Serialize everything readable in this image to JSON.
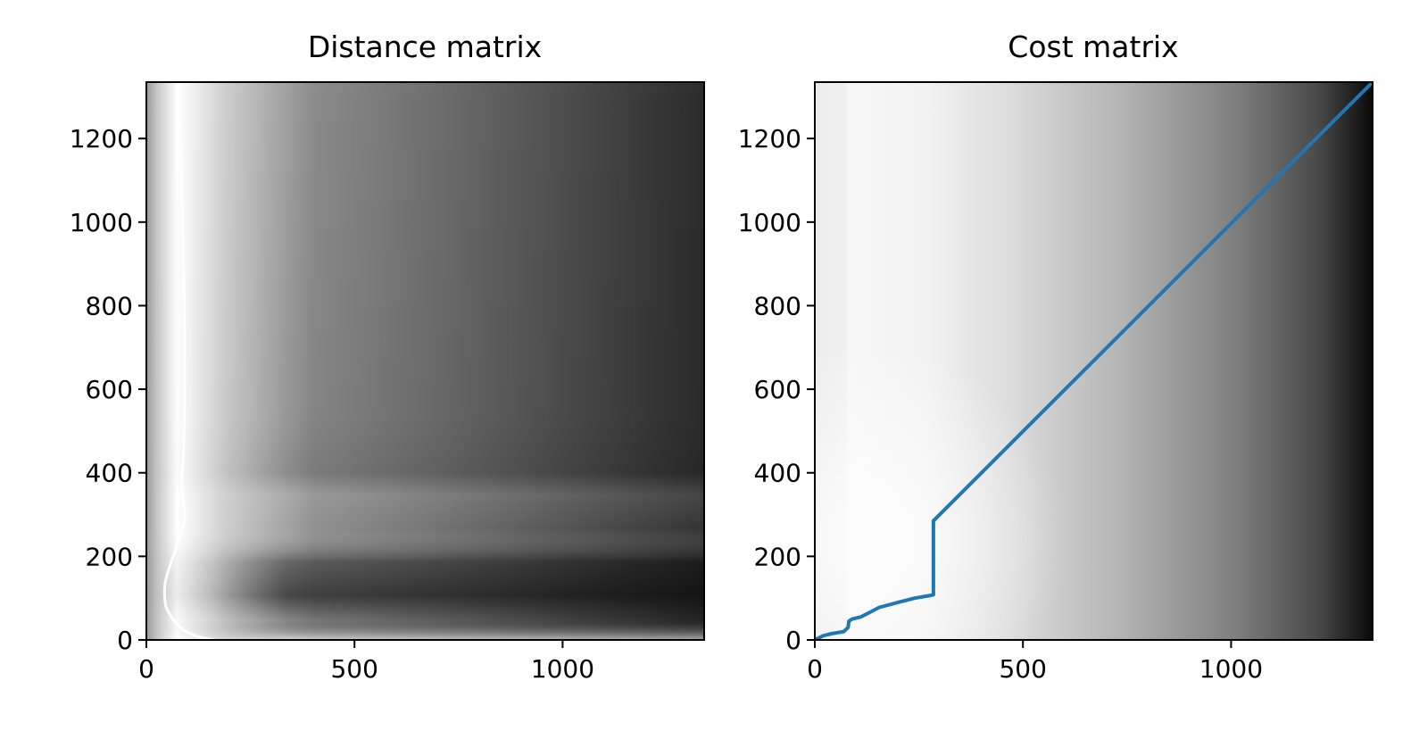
{
  "chart_data": [
    {
      "type": "heatmap",
      "title": "Distance matrix",
      "xlabel": "",
      "ylabel": "",
      "xlim": [
        0,
        1340
      ],
      "ylim": [
        0,
        1335
      ],
      "xticks": [
        0,
        500,
        1000
      ],
      "yticks": [
        0,
        200,
        400,
        600,
        800,
        1000,
        1200
      ],
      "colormap": "gray",
      "grid": false,
      "description_of_values": "bright ridge along x≈70–95 for all y; dark band near y≈60; darkening toward large x"
    },
    {
      "type": "heatmap",
      "title": "Cost matrix",
      "xlabel": "",
      "ylabel": "",
      "xlim": [
        0,
        1340
      ],
      "ylim": [
        0,
        1335
      ],
      "xticks": [
        0,
        500,
        1000
      ],
      "yticks": [
        0,
        200,
        400,
        600,
        800,
        1000,
        1200
      ],
      "colormap": "gray",
      "grid": false,
      "series": [
        {
          "type": "line",
          "color": "#1f77b4",
          "points": [
            [
              0,
              0
            ],
            [
              20,
              10
            ],
            [
              40,
              15
            ],
            [
              70,
              20
            ],
            [
              80,
              30
            ],
            [
              82,
              45
            ],
            [
              90,
              50
            ],
            [
              110,
              55
            ],
            [
              130,
              65
            ],
            [
              155,
              78
            ],
            [
              200,
              90
            ],
            [
              240,
              100
            ],
            [
              275,
              106
            ],
            [
              285,
              108
            ],
            [
              285,
              285
            ],
            [
              1340,
              1335
            ]
          ]
        }
      ]
    }
  ]
}
